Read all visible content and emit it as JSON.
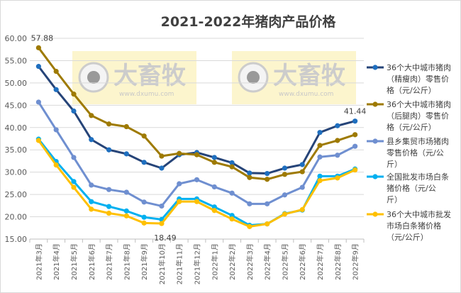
{
  "chart_data": {
    "type": "line",
    "title": "2021-2022年猪肉产品价格",
    "xlabel": "",
    "ylabel": "",
    "ylim": [
      15,
      60
    ],
    "yticks": [
      "15.00",
      "20.00",
      "25.00",
      "30.00",
      "35.00",
      "40.00",
      "45.00",
      "50.00",
      "55.00",
      "60.00"
    ],
    "grid": true,
    "legend_position": "right",
    "categories": [
      "2021年3月",
      "2021年4月",
      "2021年5月",
      "2021年6月",
      "2021年7月",
      "2021年8月",
      "2021年9月",
      "2021年10月",
      "2021年11月",
      "2021年12月",
      "2022年1月",
      "2022年2月",
      "2022年3月",
      "2022年4月",
      "2022年5月",
      "2022年6月",
      "2022年7月",
      "2022年8月",
      "2022年9月"
    ],
    "series": [
      {
        "name": "36个大中城市猪肉（精瘦肉）零售价格（元/公斤）",
        "color": "#264478",
        "values": [
          53.7,
          48.5,
          43.7,
          37.3,
          35.0,
          34.1,
          32.2,
          30.9,
          33.9,
          34.4,
          33.3,
          32.1,
          29.8,
          29.7,
          30.9,
          31.7,
          38.9,
          40.4,
          41.44
        ]
      },
      {
        "name": "36个大中城市猪肉（后腿肉）零售价格（元/公斤）",
        "color": "#9E7A00",
        "values": [
          57.88,
          52.6,
          47.5,
          42.7,
          40.8,
          40.2,
          38.1,
          33.6,
          34.2,
          33.9,
          32.2,
          31.2,
          28.8,
          28.4,
          29.5,
          30.1,
          36.0,
          37.1,
          38.4
        ]
      },
      {
        "name": "县乡集贸市场猪肉零售价格（元/公斤）",
        "color": "#6F8FD0",
        "values": [
          45.7,
          39.5,
          33.3,
          27.1,
          26.1,
          25.5,
          23.3,
          22.4,
          27.4,
          28.3,
          26.7,
          25.3,
          22.9,
          22.9,
          24.9,
          26.6,
          33.4,
          33.8,
          35.8
        ]
      },
      {
        "name": "全国批发市场白条猪价格（元/公斤）",
        "color": "#00B0F0",
        "values": [
          37.4,
          32.4,
          27.9,
          23.4,
          22.3,
          21.3,
          19.9,
          19.4,
          24.0,
          24.0,
          22.2,
          20.3,
          18.1,
          18.4,
          20.7,
          21.5,
          29.1,
          29.1,
          30.7
        ]
      },
      {
        "name": "36个大中城市批发市场白条猪价格（元/公斤）",
        "color": "#FFC000",
        "values": [
          37.1,
          31.6,
          26.6,
          21.7,
          20.8,
          20.2,
          18.6,
          18.49,
          23.4,
          23.4,
          21.4,
          19.5,
          17.8,
          18.4,
          20.6,
          21.6,
          28.1,
          28.7,
          30.5
        ]
      }
    ],
    "data_labels": [
      {
        "series": 1,
        "index": 0,
        "text": "57.88"
      },
      {
        "series": 4,
        "index": 7,
        "text": "18.49"
      },
      {
        "series": 0,
        "index": 18,
        "text": "41.44"
      }
    ],
    "legend_lines": [
      [
        "36个大中城市猪肉",
        "（精瘦肉）零售价",
        "格（元/公斤）"
      ],
      [
        "36个大中城市猪肉",
        "（后腿肉）零售价",
        "格（元/公斤）"
      ],
      [
        "县乡集贸市场猪肉",
        "零售价格（元/公",
        "斤）"
      ],
      [
        "全国批发市场白条",
        "猪价格（元/公",
        "斤）"
      ],
      [
        "36个大中城市批发",
        "市场白条猪价格",
        "（元/公斤）"
      ]
    ]
  },
  "watermark": {
    "logo_text": "大畜牧",
    "url": "www.dxumu.com"
  }
}
